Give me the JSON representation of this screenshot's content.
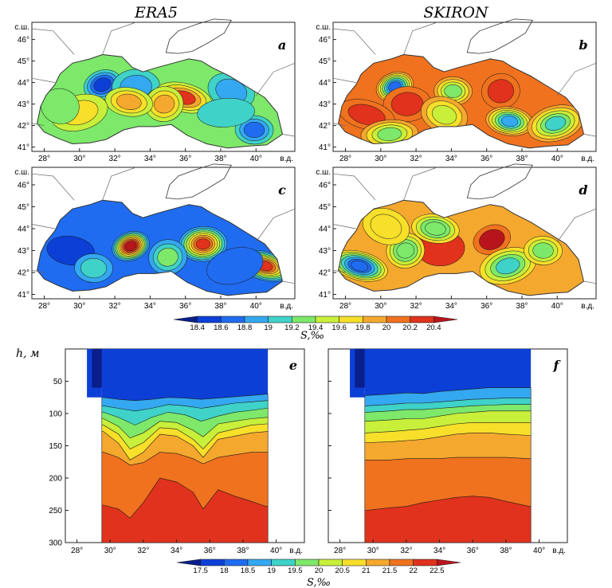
{
  "chart_data": [
    {
      "id": "a",
      "type": "heatmap",
      "title": "ERA5",
      "panel_label": "a",
      "variable": "S,‰",
      "lat_ticks": [
        "41°",
        "42°",
        "43°",
        "44°",
        "45°",
        "46°"
      ],
      "lon_ticks": [
        "28°",
        "30°",
        "32°",
        "34°",
        "36°",
        "38°",
        "40°"
      ],
      "lat_unit_label": "с.ш.",
      "lon_unit_label": "в.д.",
      "levels": [
        18.4,
        18.6,
        18.8,
        19,
        19.2,
        19.4,
        19.6,
        19.8,
        20,
        20.2,
        20.4
      ],
      "xlim": [
        27.3,
        42.2
      ],
      "ylim": [
        40.8,
        46.8
      ],
      "background_value": 19.3,
      "features": [
        {
          "lon": 31.3,
          "lat": 43.9,
          "value": 18.5
        },
        {
          "lon": 33.2,
          "lat": 43.8,
          "value": 18.9
        },
        {
          "lon": 35.9,
          "lat": 43.3,
          "value": 20.2
        },
        {
          "lon": 34.8,
          "lat": 43.0,
          "value": 19.8
        },
        {
          "lon": 32.8,
          "lat": 43.1,
          "value": 19.8
        },
        {
          "lon": 30.0,
          "lat": 42.6,
          "value": 19.7
        },
        {
          "lon": 39.9,
          "lat": 41.8,
          "value": 18.6
        },
        {
          "lon": 38.6,
          "lat": 43.6,
          "value": 18.9
        },
        {
          "lon": 38.3,
          "lat": 42.6,
          "value": 19.1
        },
        {
          "lon": 28.9,
          "lat": 42.9,
          "value": 19.2
        }
      ]
    },
    {
      "id": "b",
      "type": "heatmap",
      "title": "SKIRON",
      "panel_label": "b",
      "variable": "S,‰",
      "lat_ticks": [
        "41°",
        "42°",
        "43°",
        "44°",
        "45°",
        "46°"
      ],
      "lon_ticks": [
        "28°",
        "30°",
        "32°",
        "34°",
        "36°",
        "38°",
        "40°"
      ],
      "lat_unit_label": "с.ш.",
      "lon_unit_label": "в.д.",
      "levels": [
        18.4,
        18.6,
        18.8,
        19,
        19.2,
        19.4,
        19.6,
        19.8,
        20,
        20.2,
        20.4
      ],
      "xlim": [
        27.3,
        42.2
      ],
      "ylim": [
        40.8,
        46.8
      ],
      "background_value": 20.0,
      "features": [
        {
          "lon": 30.8,
          "lat": 43.8,
          "value": 18.6
        },
        {
          "lon": 31.5,
          "lat": 43.0,
          "value": 20.3
        },
        {
          "lon": 29.2,
          "lat": 42.5,
          "value": 20.3
        },
        {
          "lon": 36.8,
          "lat": 43.6,
          "value": 20.3
        },
        {
          "lon": 37.3,
          "lat": 42.2,
          "value": 18.8
        },
        {
          "lon": 39.9,
          "lat": 42.1,
          "value": 19.0
        },
        {
          "lon": 34.1,
          "lat": 43.6,
          "value": 19.2
        },
        {
          "lon": 33.6,
          "lat": 42.5,
          "value": 19.5
        },
        {
          "lon": 30.5,
          "lat": 41.6,
          "value": 19.2
        }
      ]
    },
    {
      "id": "c",
      "type": "heatmap",
      "panel_label": "c",
      "variable": "S,‰",
      "lat_ticks": [
        "41°",
        "42°",
        "43°",
        "44°",
        "45°",
        "46°"
      ],
      "lon_ticks": [
        "28°",
        "30°",
        "32°",
        "34°",
        "36°",
        "38°",
        "40°"
      ],
      "lat_unit_label": "с.ш.",
      "lon_unit_label": "в.д.",
      "levels": [
        18.4,
        18.6,
        18.8,
        19,
        19.2,
        19.4,
        19.6,
        19.8,
        20,
        20.2,
        20.4
      ],
      "xlim": [
        27.3,
        42.2
      ],
      "ylim": [
        40.8,
        46.8
      ],
      "background_value": 18.6,
      "features": [
        {
          "lon": 32.9,
          "lat": 43.2,
          "value": 20.5
        },
        {
          "lon": 37.0,
          "lat": 43.3,
          "value": 20.2
        },
        {
          "lon": 40.5,
          "lat": 42.3,
          "value": 20.3
        },
        {
          "lon": 35.0,
          "lat": 42.7,
          "value": 19.3
        },
        {
          "lon": 29.5,
          "lat": 43.0,
          "value": 18.5
        },
        {
          "lon": 38.8,
          "lat": 42.3,
          "value": 18.7
        },
        {
          "lon": 30.8,
          "lat": 42.2,
          "value": 19.0
        }
      ]
    },
    {
      "id": "d",
      "type": "heatmap",
      "panel_label": "d",
      "variable": "S,‰",
      "lat_ticks": [
        "41°",
        "42°",
        "43°",
        "44°",
        "45°",
        "46°"
      ],
      "lon_ticks": [
        "28°",
        "30°",
        "32°",
        "34°",
        "36°",
        "38°",
        "40°"
      ],
      "lat_unit_label": "с.ш.",
      "lon_unit_label": "в.д.",
      "levels": [
        18.4,
        18.6,
        18.8,
        19,
        19.2,
        19.4,
        19.6,
        19.8,
        20,
        20.2,
        20.4
      ],
      "xlim": [
        27.3,
        42.2
      ],
      "ylim": [
        40.8,
        46.8
      ],
      "background_value": 19.95,
      "features": [
        {
          "lon": 36.3,
          "lat": 43.5,
          "value": 20.4
        },
        {
          "lon": 33.4,
          "lat": 43.1,
          "value": 20.2
        },
        {
          "lon": 28.8,
          "lat": 42.3,
          "value": 18.6
        },
        {
          "lon": 31.4,
          "lat": 43.0,
          "value": 19.2
        },
        {
          "lon": 33.1,
          "lat": 44.0,
          "value": 19.2
        },
        {
          "lon": 37.2,
          "lat": 42.3,
          "value": 19.1
        },
        {
          "lon": 39.2,
          "lat": 43.0,
          "value": 19.3
        },
        {
          "lon": 30.3,
          "lat": 44.1,
          "value": 19.6
        }
      ]
    },
    {
      "id": "e",
      "type": "heatmap",
      "panel_label": "e",
      "variable": "S,‰",
      "ylabel": "h, м",
      "depth_ticks": [
        "50",
        "100",
        "150",
        "200",
        "250",
        "300"
      ],
      "lon_ticks": [
        "28°",
        "30°",
        "32°",
        "34°",
        "36°",
        "38°",
        "40°"
      ],
      "lon_unit_label": "в.д.",
      "xlim": [
        27.3,
        41.7
      ],
      "ylim": [
        300,
        0
      ],
      "levels": [
        17.5,
        18,
        18.5,
        19,
        19.5,
        20,
        20.5,
        21,
        21.5,
        22,
        22.5
      ],
      "section_lon_range": [
        29.5,
        39.5
      ],
      "isohalines": [
        {
          "value": 18.5,
          "lon": [
            29.6,
            30.5,
            31.5,
            32.5,
            33.5,
            34.5,
            35.5,
            36.5,
            37.5,
            38.5,
            39.4
          ],
          "depth": [
            75,
            78,
            80,
            78,
            75,
            76,
            78,
            76,
            74,
            72,
            70
          ]
        },
        {
          "value": 19.0,
          "lon": [
            29.6,
            30.5,
            31.5,
            32.5,
            33.5,
            34.5,
            35.5,
            36.5,
            37.5,
            38.5,
            39.4
          ],
          "depth": [
            88,
            92,
            96,
            92,
            86,
            88,
            92,
            88,
            84,
            82,
            80
          ]
        },
        {
          "value": 19.5,
          "lon": [
            29.6,
            30.5,
            31.5,
            32.5,
            33.5,
            34.5,
            35.5,
            36.5,
            37.5,
            38.5,
            39.4
          ],
          "depth": [
            98,
            106,
            118,
            106,
            98,
            102,
            112,
            104,
            98,
            95,
            92
          ]
        },
        {
          "value": 20.0,
          "lon": [
            29.6,
            30.5,
            31.2,
            32.0,
            33.0,
            34.0,
            35.0,
            35.6,
            36.5,
            37.5,
            38.5,
            39.4
          ],
          "depth": [
            108,
            120,
            138,
            130,
            112,
            114,
            126,
            136,
            116,
            112,
            108,
            106
          ]
        },
        {
          "value": 20.5,
          "lon": [
            29.6,
            30.5,
            31.2,
            32.0,
            33.0,
            34.0,
            35.0,
            35.6,
            36.5,
            37.5,
            38.5,
            39.4
          ],
          "depth": [
            118,
            132,
            155,
            145,
            122,
            124,
            140,
            155,
            130,
            124,
            118,
            116
          ]
        },
        {
          "value": 21.0,
          "lon": [
            29.6,
            30.5,
            31.2,
            32.0,
            33.0,
            34.0,
            35.0,
            35.6,
            36.5,
            37.5,
            38.5,
            39.4
          ],
          "depth": [
            128,
            146,
            172,
            160,
            132,
            135,
            150,
            168,
            140,
            135,
            130,
            128
          ]
        },
        {
          "value": 21.5,
          "lon": [
            29.6,
            30.5,
            31.2,
            32.0,
            33.0,
            34.0,
            35.0,
            35.6,
            36.5,
            37.5,
            38.5,
            39.4
          ],
          "depth": [
            160,
            168,
            180,
            176,
            160,
            162,
            170,
            178,
            168,
            164,
            160,
            160
          ]
        },
        {
          "value": 22.0,
          "lon": [
            29.6,
            30.5,
            31.2,
            32.0,
            33.0,
            34.0,
            35.0,
            35.6,
            36.5,
            37.5,
            38.5,
            39.4
          ],
          "depth": [
            242,
            248,
            262,
            238,
            200,
            206,
            222,
            248,
            218,
            228,
            236,
            244
          ]
        }
      ]
    },
    {
      "id": "f",
      "type": "heatmap",
      "panel_label": "f",
      "variable": "S,‰",
      "depth_ticks": [
        "50",
        "100",
        "150",
        "200",
        "250",
        "300"
      ],
      "lon_ticks": [
        "28°",
        "30°",
        "32°",
        "34°",
        "36°",
        "38°",
        "40°"
      ],
      "lon_unit_label": "в.д.",
      "xlim": [
        27.3,
        41.7
      ],
      "ylim": [
        300,
        0
      ],
      "levels": [
        17.5,
        18,
        18.5,
        19,
        19.5,
        20,
        20.5,
        21,
        21.5,
        22,
        22.5
      ],
      "section_lon_range": [
        29.5,
        39.5
      ],
      "isohalines": [
        {
          "value": 18.5,
          "lon": [
            29.6,
            31.0,
            32.0,
            33.0,
            34.0,
            35.0,
            36.0,
            37.0,
            38.0,
            39.4
          ],
          "depth": [
            72,
            70,
            68,
            69,
            66,
            64,
            62,
            60,
            60,
            60
          ]
        },
        {
          "value": 19.0,
          "lon": [
            29.6,
            31.0,
            32.0,
            33.0,
            34.0,
            35.0,
            36.0,
            37.0,
            38.0,
            39.4
          ],
          "depth": [
            88,
            86,
            84,
            84,
            82,
            80,
            78,
            77,
            76,
            76
          ]
        },
        {
          "value": 19.5,
          "lon": [
            29.6,
            31.0,
            32.0,
            33.0,
            34.0,
            35.0,
            36.0,
            37.0,
            38.0,
            39.4
          ],
          "depth": [
            98,
            96,
            94,
            94,
            92,
            90,
            88,
            87,
            86,
            86
          ]
        },
        {
          "value": 20.0,
          "lon": [
            29.6,
            31.0,
            32.0,
            33.0,
            34.0,
            35.0,
            36.0,
            37.0,
            38.0,
            39.4
          ],
          "depth": [
            112,
            110,
            108,
            108,
            104,
            100,
            98,
            96,
            96,
            96
          ]
        },
        {
          "value": 20.5,
          "lon": [
            29.6,
            31.0,
            32.0,
            33.0,
            34.0,
            35.0,
            36.0,
            37.0,
            38.0,
            39.4
          ],
          "depth": [
            130,
            128,
            126,
            124,
            120,
            116,
            114,
            114,
            114,
            114
          ]
        },
        {
          "value": 21.0,
          "lon": [
            29.6,
            31.0,
            32.0,
            33.0,
            34.0,
            35.0,
            36.0,
            37.0,
            38.0,
            39.4
          ],
          "depth": [
            145,
            144,
            142,
            140,
            136,
            132,
            130,
            130,
            132,
            134
          ]
        },
        {
          "value": 21.5,
          "lon": [
            29.6,
            31.0,
            32.0,
            33.0,
            34.0,
            35.0,
            36.0,
            37.0,
            38.0,
            39.4
          ],
          "depth": [
            172,
            172,
            170,
            170,
            170,
            168,
            168,
            168,
            168,
            170
          ]
        },
        {
          "value": 22.0,
          "lon": [
            29.6,
            31.0,
            32.0,
            33.0,
            34.0,
            35.0,
            36.0,
            37.0,
            38.0,
            39.4
          ],
          "depth": [
            250,
            246,
            244,
            238,
            234,
            230,
            228,
            230,
            236,
            244
          ]
        }
      ]
    }
  ],
  "colorbars": [
    {
      "id": "top",
      "labels": [
        "18.4",
        "18.6",
        "18.8",
        "19",
        "19.2",
        "19.4",
        "19.6",
        "19.8",
        "20",
        "20.2",
        "20.4"
      ],
      "label": "S,‰"
    },
    {
      "id": "bottom",
      "labels": [
        "17.5",
        "18",
        "18.5",
        "19",
        "19.5",
        "20",
        "20.5",
        "21",
        "21.5",
        "22",
        "22.5"
      ],
      "label": "S,‰"
    }
  ],
  "colors": {
    "palette": [
      "#0a1e8c",
      "#0c3fd6",
      "#1f6cf0",
      "#34a8f0",
      "#3fd2c8",
      "#7de86a",
      "#c8ef3a",
      "#f7df2a",
      "#f5a82e",
      "#f0721e",
      "#e0321c",
      "#b8141c"
    ],
    "land": "#ffffff",
    "coast": "#333333",
    "border": "#666666"
  }
}
